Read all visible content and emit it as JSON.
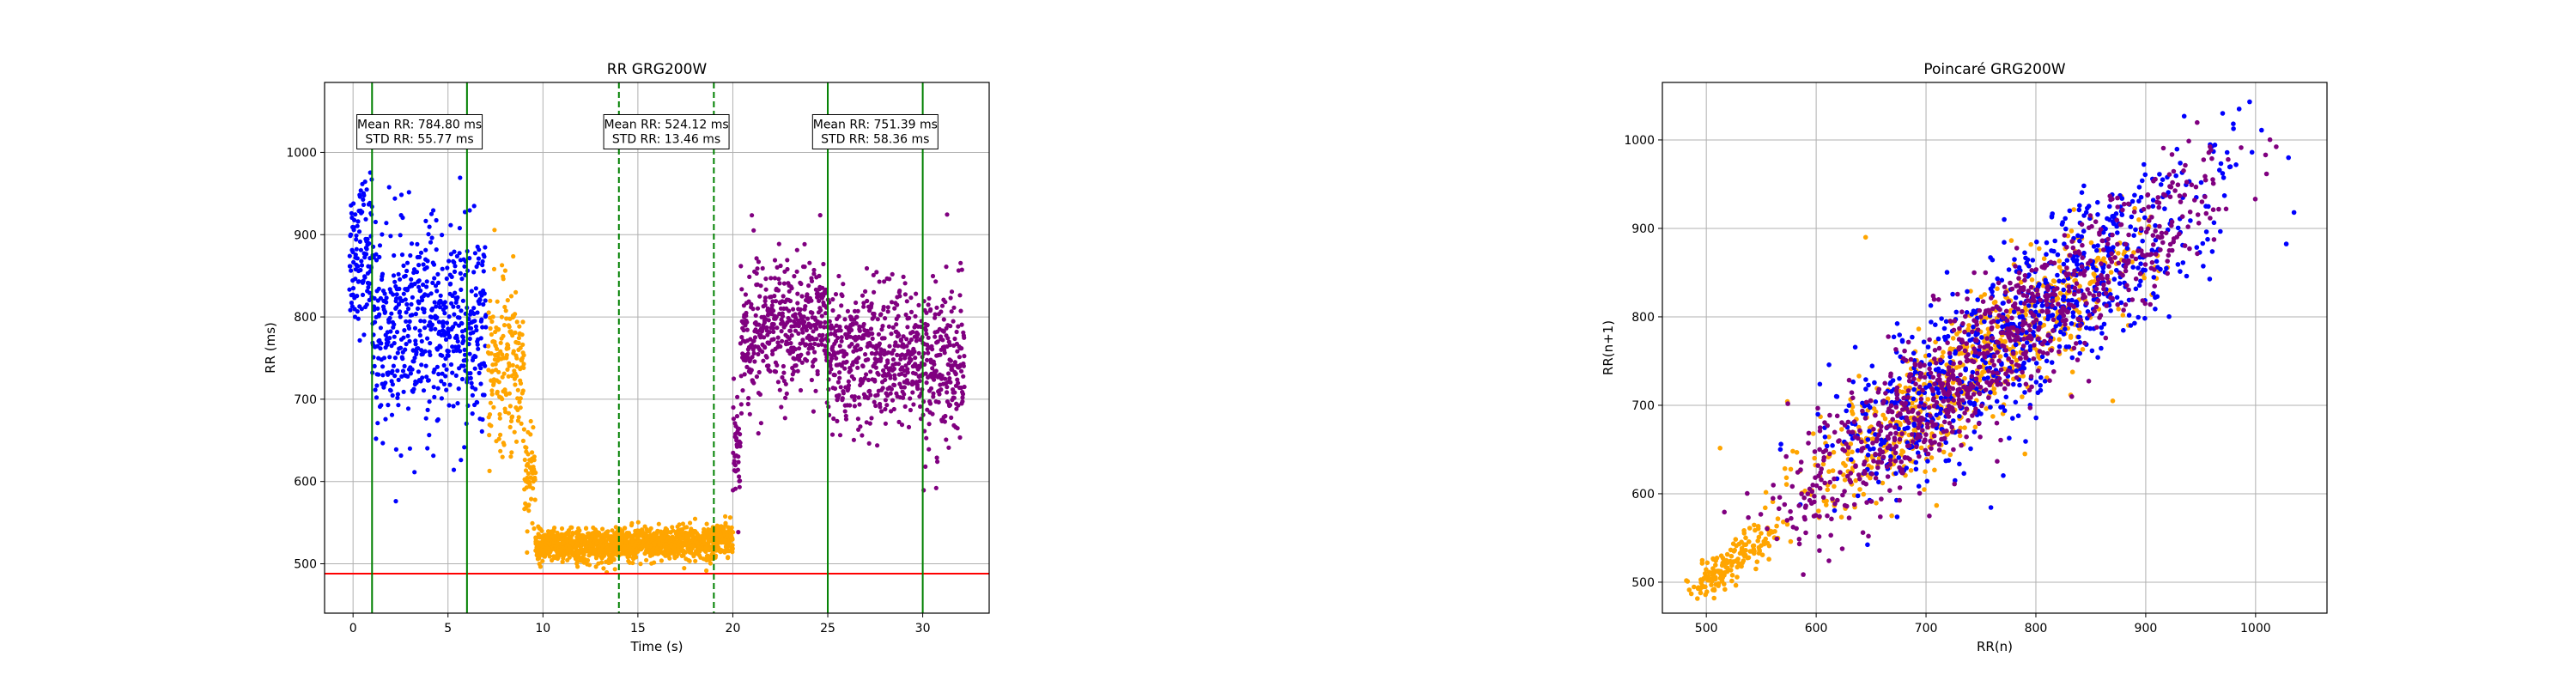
{
  "chart_data": [
    {
      "type": "scatter",
      "title": "RR GRG200W",
      "xlabel": "Time (s)",
      "ylabel": "RR (ms)",
      "xlim": [
        -1.5,
        33.5
      ],
      "ylim": [
        440,
        1085
      ],
      "xticks": [
        0,
        5,
        10,
        15,
        20,
        25,
        30
      ],
      "yticks": [
        500,
        600,
        700,
        800,
        900,
        1000
      ],
      "grid": true,
      "series": [
        {
          "color": "#0000ff",
          "segments": [
            {
              "x_range": [
                -0.2,
                1.0
              ],
              "y_mean": 880,
              "y_spread": 60
            },
            {
              "x_range": [
                1.0,
                7.0
              ],
              "y_mean": 785,
              "y_spread": 80
            }
          ]
        },
        {
          "color": "#ffa500",
          "segments": [
            {
              "x_range": [
                7.1,
                9.0
              ],
              "y_mean": 740,
              "y_spread": 70
            },
            {
              "x_range": [
                9.0,
                9.6
              ],
              "y_mean": 610,
              "y_spread": 45
            },
            {
              "x_range": [
                9.6,
                14.0
              ],
              "y_mean": 522,
              "y_spread": 13
            },
            {
              "x_range": [
                14.0,
                19.0
              ],
              "y_mean": 524,
              "y_spread": 13
            },
            {
              "x_range": [
                19.0,
                20.0
              ],
              "y_mean": 533,
              "y_spread": 13
            }
          ]
        },
        {
          "color": "#800080",
          "segments": [
            {
              "x_range": [
                20.0,
                20.4
              ],
              "y_mean": 640,
              "y_spread": 40
            },
            {
              "x_range": [
                20.4,
                21.5
              ],
              "y_mean": 780,
              "y_spread": 70
            },
            {
              "x_range": [
                21.5,
                25.0
              ],
              "y_mean": 790,
              "y_spread": 50
            },
            {
              "x_range": [
                25.0,
                30.0
              ],
              "y_mean": 751,
              "y_spread": 58
            },
            {
              "x_range": [
                30.0,
                32.2
              ],
              "y_mean": 740,
              "y_spread": 65
            }
          ]
        }
      ],
      "reference_lines": [
        {
          "orientation": "horizontal",
          "value": 488,
          "color": "#ff0000",
          "style": "solid"
        },
        {
          "orientation": "vertical",
          "value": 1,
          "color": "#008000",
          "style": "solid"
        },
        {
          "orientation": "vertical",
          "value": 6,
          "color": "#008000",
          "style": "solid"
        },
        {
          "orientation": "vertical",
          "value": 14,
          "color": "#008000",
          "style": "dashed"
        },
        {
          "orientation": "vertical",
          "value": 19,
          "color": "#008000",
          "style": "dashed"
        },
        {
          "orientation": "vertical",
          "value": 25,
          "color": "#008000",
          "style": "solid"
        },
        {
          "orientation": "vertical",
          "value": 30,
          "color": "#008000",
          "style": "solid"
        }
      ],
      "annotations": [
        {
          "x": 3.5,
          "y": 1025,
          "lines": [
            "Mean RR: 784.80 ms",
            "STD RR: 55.77 ms"
          ]
        },
        {
          "x": 16.5,
          "y": 1025,
          "lines": [
            "Mean RR: 524.12 ms",
            "STD RR: 13.46 ms"
          ]
        },
        {
          "x": 27.5,
          "y": 1025,
          "lines": [
            "Mean RR: 751.39 ms",
            "STD RR: 58.36 ms"
          ]
        }
      ]
    },
    {
      "type": "scatter",
      "title": "Poincaré GRG200W",
      "xlabel": "RR(n)",
      "ylabel": "RR(n+1)",
      "xlim": [
        460,
        1065
      ],
      "ylim": [
        465,
        1065
      ],
      "xticks": [
        500,
        600,
        700,
        800,
        900,
        1000
      ],
      "yticks": [
        500,
        600,
        700,
        800,
        900,
        1000
      ],
      "grid": true,
      "series": [
        {
          "color": "#ffa500",
          "clusters": [
            {
              "center": [
                525,
                525
              ],
              "range": [
                490,
                565
              ],
              "spread": 8
            },
            {
              "center": [
                740,
                740
              ],
              "range": [
                600,
                880
              ],
              "spread": 25
            }
          ],
          "outliers": [
            [
              645,
              890
            ],
            [
              870,
              705
            ],
            [
              790,
              645
            ]
          ]
        },
        {
          "color": "#0000ff",
          "clusters": [
            {
              "center": [
                785,
                785
              ],
              "range": [
                650,
                980
              ],
              "spread": 35
            }
          ],
          "outliers": [
            [
              970,
              1030
            ],
            [
              985,
              1035
            ],
            [
              1030,
              980
            ],
            [
              1035,
              918
            ]
          ]
        },
        {
          "color": "#800080",
          "clusters": [
            {
              "center": [
                755,
                755
              ],
              "range": [
                580,
                960
              ],
              "spread": 28
            }
          ],
          "outliers": []
        }
      ]
    }
  ]
}
